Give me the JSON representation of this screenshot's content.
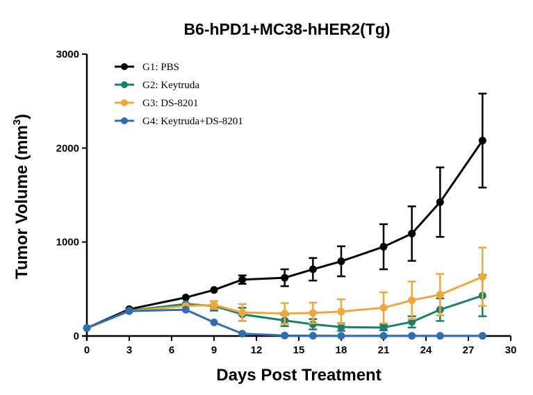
{
  "chart_data": {
    "type": "line",
    "title": "B6-hPD1+MC38-hHER2(Tg)",
    "xlabel": "Days Post Treatment",
    "ylabel_main": "Tumor Volume (mm",
    "ylabel_sup": "3",
    "ylabel_close": ")",
    "xlim": [
      0,
      30
    ],
    "ylim": [
      0,
      3000
    ],
    "x_ticks": [
      0,
      3,
      6,
      9,
      12,
      15,
      18,
      21,
      24,
      27,
      30
    ],
    "y_ticks": [
      0,
      1000,
      2000,
      3000
    ],
    "x": [
      0,
      3,
      7,
      9,
      11,
      14,
      16,
      18,
      21,
      23,
      25,
      28
    ],
    "series": [
      {
        "name": "G1: PBS",
        "color": "#000000",
        "values": [
          85,
          285,
          410,
          490,
          600,
          620,
          710,
          795,
          950,
          1090,
          1425,
          2080
        ],
        "errors": [
          0,
          0,
          0,
          0,
          45,
          90,
          120,
          160,
          240,
          290,
          370,
          500
        ]
      },
      {
        "name": "G2: Keytruda",
        "color": "#18806a",
        "values": [
          85,
          270,
          340,
          320,
          230,
          165,
          125,
          95,
          90,
          150,
          280,
          430
        ],
        "errors": [
          0,
          0,
          0,
          50,
          70,
          60,
          55,
          40,
          30,
          60,
          120,
          220
        ]
      },
      {
        "name": "G3: DS-8201",
        "color": "#f0a73a",
        "values": [
          85,
          265,
          320,
          330,
          250,
          240,
          245,
          260,
          300,
          380,
          440,
          630
        ],
        "errors": [
          0,
          0,
          0,
          40,
          90,
          110,
          110,
          130,
          165,
          200,
          220,
          310
        ]
      },
      {
        "name": "G4: Keytruda+DS-8201",
        "color": "#2f6db4",
        "values": [
          85,
          265,
          280,
          145,
          25,
          5,
          3,
          2,
          2,
          2,
          2,
          2
        ],
        "errors": [
          0,
          0,
          0,
          0,
          0,
          0,
          0,
          0,
          0,
          0,
          0,
          0
        ]
      }
    ],
    "legend_position": "top-left",
    "grid": false
  }
}
